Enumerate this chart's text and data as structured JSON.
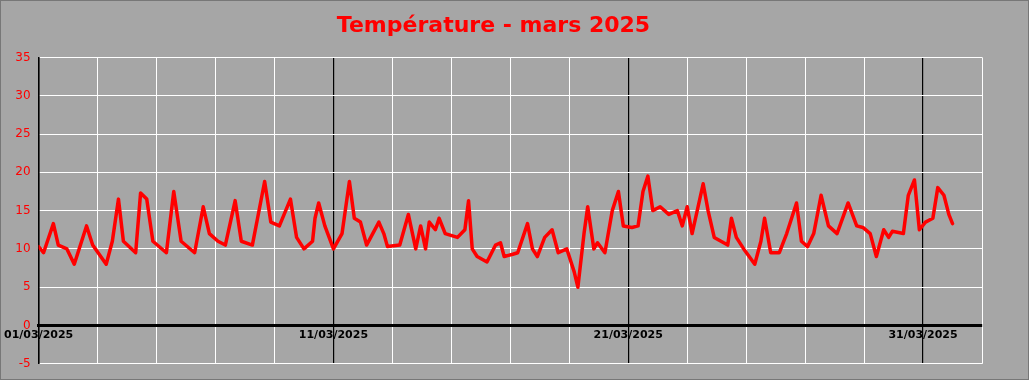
{
  "chart_data": {
    "type": "line",
    "title": "Température - mars 2025",
    "x": [
      "2025-03-01T00:00",
      "2025-03-01T04:00",
      "2025-03-01T12:00",
      "2025-03-01T16:00",
      "2025-03-01T23:00",
      "2025-03-02T05:00",
      "2025-03-02T15:00",
      "2025-03-02T20:00",
      "2025-03-03T07:00",
      "2025-03-03T12:00",
      "2025-03-03T17:00",
      "2025-03-03T21:00",
      "2025-03-04T07:00",
      "2025-03-04T11:00",
      "2025-03-04T16:00",
      "2025-03-04T21:00",
      "2025-03-05T08:00",
      "2025-03-05T14:00",
      "2025-03-05T20:00",
      "2025-03-06T07:00",
      "2025-03-06T14:00",
      "2025-03-06T19:00",
      "2025-03-07T02:00",
      "2025-03-07T08:00",
      "2025-03-07T16:00",
      "2025-03-07T21:00",
      "2025-03-08T06:00",
      "2025-03-08T16:00",
      "2025-03-08T21:00",
      "2025-03-09T04:00",
      "2025-03-09T13:00",
      "2025-03-09T18:00",
      "2025-03-10T00:00",
      "2025-03-10T07:00",
      "2025-03-10T09:00",
      "2025-03-10T12:00",
      "2025-03-10T17:00",
      "2025-03-11T00:00",
      "2025-03-11T07:00",
      "2025-03-11T13:00",
      "2025-03-11T17:00",
      "2025-03-11T22:00",
      "2025-03-12T03:00",
      "2025-03-12T13:00",
      "2025-03-12T17:00",
      "2025-03-12T20:00",
      "2025-03-13T06:00",
      "2025-03-13T13:00",
      "2025-03-13T19:00",
      "2025-03-13T23:00",
      "2025-03-14T03:00",
      "2025-03-14T06:00",
      "2025-03-14T11:00",
      "2025-03-14T14:00",
      "2025-03-14T19:00",
      "2025-03-15T05:00",
      "2025-03-15T11:00",
      "2025-03-15T14:00",
      "2025-03-15T17:00",
      "2025-03-15T21:00",
      "2025-03-16T05:00",
      "2025-03-16T12:00",
      "2025-03-16T16:00",
      "2025-03-16T19:00",
      "2025-03-17T02:00",
      "2025-03-17T06:00",
      "2025-03-17T14:00",
      "2025-03-17T18:00",
      "2025-03-17T22:00",
      "2025-03-18T04:00",
      "2025-03-18T10:00",
      "2025-03-18T15:00",
      "2025-03-18T22:00",
      "2025-03-19T04:00",
      "2025-03-19T07:00",
      "2025-03-19T12:00",
      "2025-03-19T15:00",
      "2025-03-19T20:00",
      "2025-03-19T23:00",
      "2025-03-20T05:00",
      "2025-03-20T11:00",
      "2025-03-20T16:00",
      "2025-03-20T20:00",
      "2025-03-21T03:00",
      "2025-03-21T08:00",
      "2025-03-21T12:00",
      "2025-03-21T16:00",
      "2025-03-21T20:00",
      "2025-03-22T02:00",
      "2025-03-22T09:00",
      "2025-03-22T16:00",
      "2025-03-22T20:00",
      "2025-03-23T00:00",
      "2025-03-23T04:00",
      "2025-03-23T13:00",
      "2025-03-23T17:00",
      "2025-03-23T22:00",
      "2025-03-24T09:00",
      "2025-03-24T12:00",
      "2025-03-24T16:00",
      "2025-03-24T22:00",
      "2025-03-25T07:00",
      "2025-03-25T12:00",
      "2025-03-25T15:00",
      "2025-03-25T20:00",
      "2025-03-26T03:00",
      "2025-03-26T09:00",
      "2025-03-26T17:00",
      "2025-03-26T21:00",
      "2025-03-27T02:00",
      "2025-03-27T07:00",
      "2025-03-27T13:00",
      "2025-03-27T19:00",
      "2025-03-28T02:00",
      "2025-03-28T11:00",
      "2025-03-28T18:00",
      "2025-03-28T23:00",
      "2025-03-29T05:00",
      "2025-03-29T10:00",
      "2025-03-29T16:00",
      "2025-03-29T20:00",
      "2025-03-29T23:00",
      "2025-03-30T08:00",
      "2025-03-30T12:00",
      "2025-03-30T17:00",
      "2025-03-30T21:00",
      "2025-03-31T02:00",
      "2025-03-31T08:00",
      "2025-03-31T12:00",
      "2025-03-31T17:00",
      "2025-03-31T21:00",
      "2025-04-01T00:00"
    ],
    "values": [
      10.3,
      9.5,
      13.3,
      10.5,
      10,
      8,
      13,
      10.5,
      8,
      11,
      16.5,
      11,
      9.5,
      17.3,
      16.5,
      11,
      9.5,
      17.5,
      11,
      9.5,
      15.5,
      12,
      11,
      10.5,
      16.3,
      11,
      10.5,
      18.8,
      13.5,
      13,
      16.5,
      11.5,
      10,
      11,
      14,
      16,
      13,
      10,
      12,
      18.8,
      14,
      13.5,
      10.5,
      13.5,
      12,
      10.3,
      10.5,
      14.5,
      10,
      13,
      10,
      13.5,
      12.5,
      14,
      12,
      11.5,
      12.5,
      16.3,
      10,
      9,
      8.3,
      10.5,
      10.8,
      9,
      9.3,
      9.5,
      13.3,
      10,
      9,
      11.5,
      12.5,
      9.5,
      10,
      7,
      5,
      12,
      15.5,
      10,
      10.8,
      9.5,
      15,
      17.5,
      13,
      12.8,
      13,
      17.5,
      19.5,
      15,
      15.5,
      14.5,
      15,
      13,
      15.5,
      12,
      18.5,
      15,
      11.5,
      10.5,
      14,
      11.5,
      10,
      8,
      11,
      14,
      9.5,
      9.5,
      12,
      16,
      11,
      10.3,
      12,
      17,
      13,
      12,
      16,
      13,
      12.8,
      12,
      9,
      12.5,
      11.5,
      12.3,
      12,
      17,
      19,
      12.5,
      13.5,
      14,
      18,
      17,
      14.5,
      13.3
    ],
    "color": "#ff0000",
    "xlim": [
      "2025-03-01",
      "2025-04-02"
    ],
    "xticks": [
      {
        "value": "2025-03-01",
        "label": "01/03/2025"
      },
      {
        "value": "2025-03-03",
        "label": null
      },
      {
        "value": "2025-03-05",
        "label": null
      },
      {
        "value": "2025-03-07",
        "label": null
      },
      {
        "value": "2025-03-09",
        "label": null
      },
      {
        "value": "2025-03-11",
        "label": "11/03/2025"
      },
      {
        "value": "2025-03-13",
        "label": null
      },
      {
        "value": "2025-03-15",
        "label": null
      },
      {
        "value": "2025-03-17",
        "label": null
      },
      {
        "value": "2025-03-19",
        "label": null
      },
      {
        "value": "2025-03-21",
        "label": "21/03/2025"
      },
      {
        "value": "2025-03-23",
        "label": null
      },
      {
        "value": "2025-03-25",
        "label": null
      },
      {
        "value": "2025-03-27",
        "label": null
      },
      {
        "value": "2025-03-29",
        "label": null
      },
      {
        "value": "2025-03-31",
        "label": "31/03/2025"
      },
      {
        "value": "2025-04-02",
        "label": null
      }
    ],
    "ylim": [
      -5,
      35
    ],
    "yticks": [
      -5,
      0,
      5,
      10,
      15,
      20,
      25,
      30,
      35
    ],
    "grid": true,
    "legend": false,
    "marker": "none",
    "line_style": "solid"
  }
}
